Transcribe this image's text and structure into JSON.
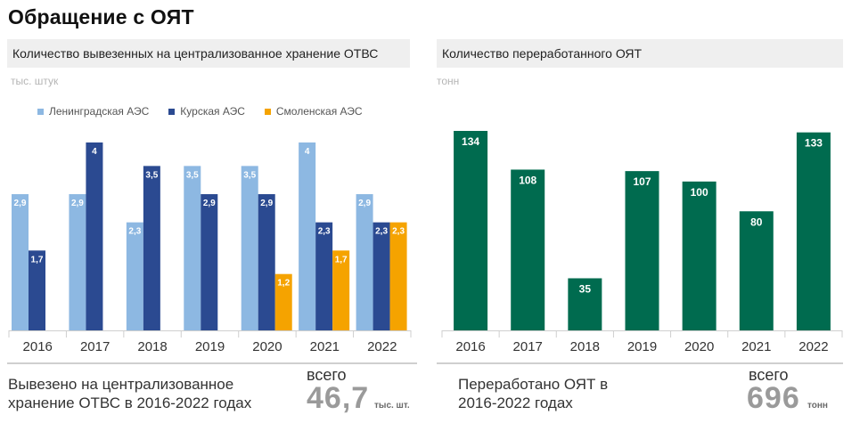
{
  "page": {
    "title": "Обращение с ОЯТ"
  },
  "left": {
    "header": "Количество вывезенных на централизованное хранение ОТВС",
    "unit": "тыс. штук",
    "footer_text_line1": "Вывезено на централизованное",
    "footer_text_line2": "хранение ОТВС в 2016-2022 годах",
    "total_label": "всего",
    "total_value": "46,7",
    "total_unit": "тыс. шт."
  },
  "right": {
    "header": "Количество переработанного ОЯТ",
    "unit": "тонн",
    "footer_text_line1": "Переработано ОЯТ в",
    "footer_text_line2": "2016-2022 годах",
    "total_label": "всего",
    "total_value": "696",
    "total_unit": "тонн"
  },
  "chart_data": [
    {
      "type": "bar",
      "categories": [
        "2016",
        "2017",
        "2018",
        "2019",
        "2020",
        "2021",
        "2022"
      ],
      "series": [
        {
          "name": "Ленинградская АЭС",
          "color": "#8db8e2",
          "values": [
            2.9,
            2.9,
            2.3,
            3.5,
            3.5,
            4,
            2.9
          ],
          "labels": [
            "2,9",
            "2,9",
            "2,3",
            "3,5",
            "3,5",
            "4",
            "2,9"
          ]
        },
        {
          "name": "Курская АЭС",
          "color": "#2b4a91",
          "values": [
            1.7,
            4,
            3.5,
            2.9,
            2.9,
            2.3,
            2.3
          ],
          "labels": [
            "1,7",
            "4",
            "3,5",
            "2,9",
            "2,9",
            "2,3",
            "2,3"
          ]
        },
        {
          "name": "Смоленская АЭС",
          "color": "#f5a300",
          "values": [
            null,
            null,
            null,
            null,
            1.2,
            1.7,
            2.3
          ],
          "labels": [
            "",
            "",
            "",
            "",
            "1,2",
            "1,7",
            "2,3"
          ]
        }
      ],
      "ylabel": "тыс. штук",
      "ylim": [
        0,
        4
      ],
      "grid": false,
      "legend": "top-left"
    },
    {
      "type": "bar",
      "categories": [
        "2016",
        "2017",
        "2018",
        "2019",
        "2020",
        "2021",
        "2022"
      ],
      "series": [
        {
          "color": "#006b4f",
          "values": [
            134,
            108,
            35,
            107,
            100,
            80,
            133
          ],
          "labels": [
            "134",
            "108",
            "35",
            "107",
            "100",
            "80",
            "133"
          ]
        }
      ],
      "ylabel": "тонн",
      "ylim": [
        0,
        134
      ],
      "grid": false
    }
  ]
}
